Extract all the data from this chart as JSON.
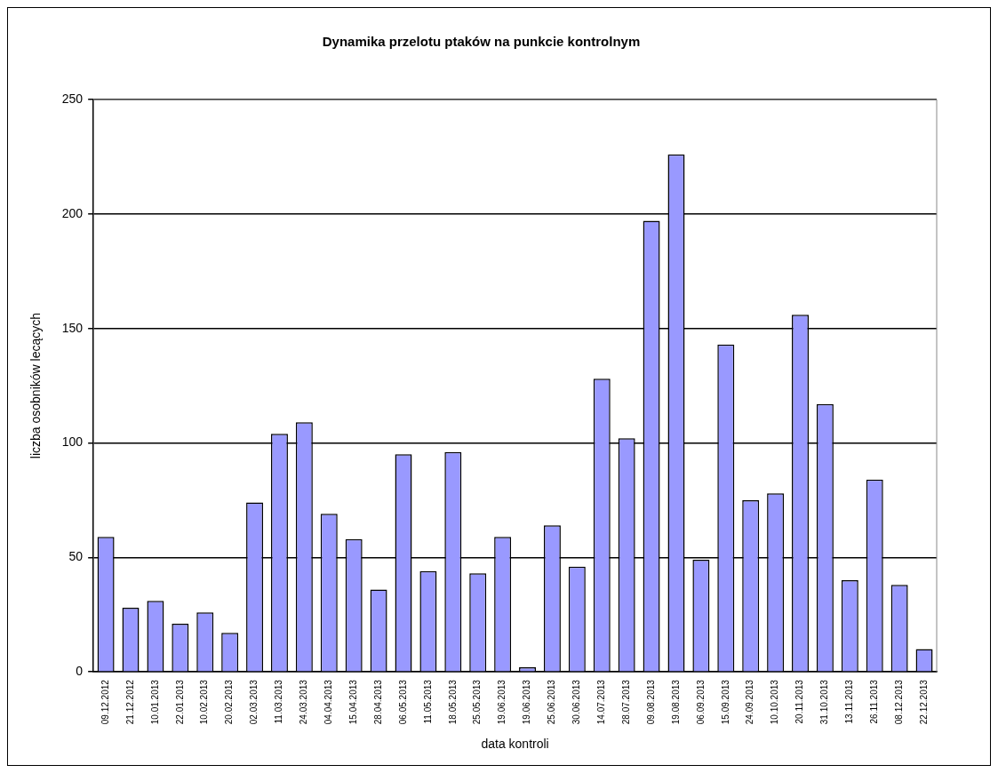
{
  "chart_data": {
    "type": "bar",
    "title": "Dynamika przelotu ptaków na punkcie kontrolnym",
    "xlabel": "data kontroli",
    "ylabel": "liczba osobników lecących",
    "categories": [
      "09.12.2012",
      "21.12.2012",
      "10.01.2013",
      "22.01.2013",
      "10.02.2013",
      "20.02.2013",
      "02.03.2013",
      "11.03.2013",
      "24.03.2013",
      "04.04.2013",
      "15.04.2013",
      "28.04.2013",
      "06.05.2013",
      "11.05.2013",
      "18.05.2013",
      "25.05.2013",
      "19.06.2013",
      "19.06.2013",
      "25.06.2013",
      "30.06.2013",
      "14.07.2013",
      "28.07.2013",
      "09.08.2013",
      "19.08.2013",
      "06.09.2013",
      "15.09.2013",
      "24.09.2013",
      "10.10.2013",
      "20.11.2013",
      "31.10.2013",
      "13.11.2013",
      "26.11.2013",
      "08.12.2013",
      "22.12.2013"
    ],
    "values": [
      59,
      28,
      31,
      21,
      26,
      17,
      74,
      104,
      109,
      69,
      58,
      36,
      95,
      44,
      96,
      43,
      59,
      2,
      64,
      46,
      128,
      102,
      197,
      226,
      49,
      143,
      75,
      78,
      156,
      117,
      40,
      84,
      38,
      10
    ],
    "color": "#9999ff",
    "ylim": [
      0,
      250
    ],
    "yticks": [
      0,
      50,
      100,
      150,
      200,
      250
    ],
    "grid": "y",
    "legend": false
  }
}
